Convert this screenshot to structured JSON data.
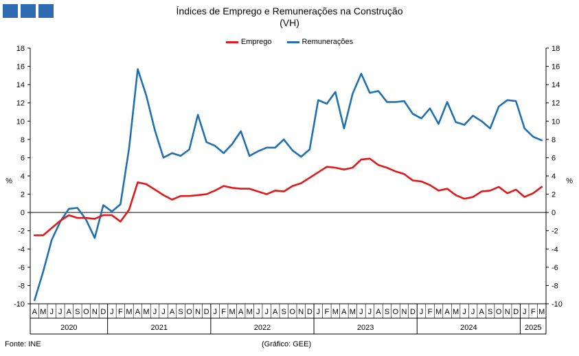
{
  "title": "Índices de Emprego e Remunerações na Construção",
  "subtitle": "(VH)",
  "source": "Fonte: INE",
  "credit": "(Gráfico: GEE)",
  "colors": {
    "emprego": "#e0191b",
    "remuneracoes": "#1f6fb2",
    "logo": "#2e6bb0"
  },
  "chart_data": {
    "type": "line",
    "title": "Índices de Emprego e Remunerações na Construção",
    "subtitle": "(VH)",
    "ylabel_left": "%",
    "ylabel_right": "%",
    "ylim": [
      -10,
      18
    ],
    "yticks": [
      -10,
      -8,
      -6,
      -4,
      -2,
      0,
      2,
      4,
      6,
      8,
      10,
      12,
      14,
      16,
      18
    ],
    "grid": false,
    "legend": "top-center",
    "x": [
      "A",
      "M",
      "J",
      "J",
      "A",
      "S",
      "O",
      "N",
      "D",
      "J",
      "F",
      "M",
      "A",
      "M",
      "J",
      "J",
      "A",
      "S",
      "O",
      "N",
      "D",
      "J",
      "F",
      "M",
      "A",
      "M",
      "J",
      "J",
      "A",
      "S",
      "O",
      "N",
      "D",
      "J",
      "F",
      "M",
      "A",
      "M",
      "J",
      "J",
      "A",
      "S",
      "O",
      "N",
      "D",
      "J",
      "F",
      "M",
      "A",
      "M",
      "J",
      "J",
      "A",
      "S",
      "O",
      "N",
      "D",
      "J",
      "F",
      "M"
    ],
    "years": [
      {
        "label": "2020",
        "start": 0,
        "end": 9
      },
      {
        "label": "2021",
        "start": 9,
        "end": 21
      },
      {
        "label": "2022",
        "start": 21,
        "end": 33
      },
      {
        "label": "2023",
        "start": 33,
        "end": 45
      },
      {
        "label": "2024",
        "start": 45,
        "end": 57
      },
      {
        "label": "2025",
        "start": 57,
        "end": 60
      }
    ],
    "series": [
      {
        "name": "Emprego",
        "color": "#e0191b",
        "values": [
          -2.5,
          -2.5,
          -1.7,
          -0.9,
          -0.3,
          -0.6,
          -0.6,
          -0.7,
          -0.3,
          -0.3,
          -1.0,
          0.3,
          3.3,
          3.1,
          2.5,
          1.9,
          1.4,
          1.8,
          1.8,
          1.9,
          2.0,
          2.4,
          2.9,
          2.7,
          2.6,
          2.6,
          2.3,
          2.0,
          2.4,
          2.3,
          2.9,
          3.2,
          3.8,
          4.4,
          5.0,
          4.9,
          4.7,
          4.9,
          5.8,
          5.9,
          5.2,
          4.9,
          4.5,
          4.2,
          3.5,
          3.4,
          3.0,
          2.4,
          2.6,
          1.9,
          1.5,
          1.7,
          2.3,
          2.4,
          2.8,
          2.1,
          2.5,
          1.7,
          2.1,
          2.8
        ]
      },
      {
        "name": "Remunerações",
        "color": "#1f6fb2",
        "values": [
          -9.6,
          -6.5,
          -3.0,
          -1.0,
          0.4,
          0.5,
          -0.8,
          -2.8,
          0.8,
          0.1,
          0.9,
          7.0,
          15.7,
          12.8,
          9.0,
          6.0,
          6.5,
          6.2,
          6.9,
          10.7,
          7.7,
          7.3,
          6.5,
          7.5,
          8.9,
          6.2,
          6.7,
          7.1,
          7.1,
          8.0,
          6.8,
          6.1,
          6.9,
          12.3,
          11.9,
          13.2,
          9.2,
          13.0,
          15.2,
          13.1,
          13.3,
          12.1,
          12.1,
          12.2,
          10.8,
          10.3,
          11.4,
          9.7,
          12.1,
          9.9,
          9.6,
          10.6,
          10.0,
          9.2,
          11.6,
          12.3,
          12.2,
          9.2,
          8.3,
          7.9
        ]
      }
    ]
  }
}
